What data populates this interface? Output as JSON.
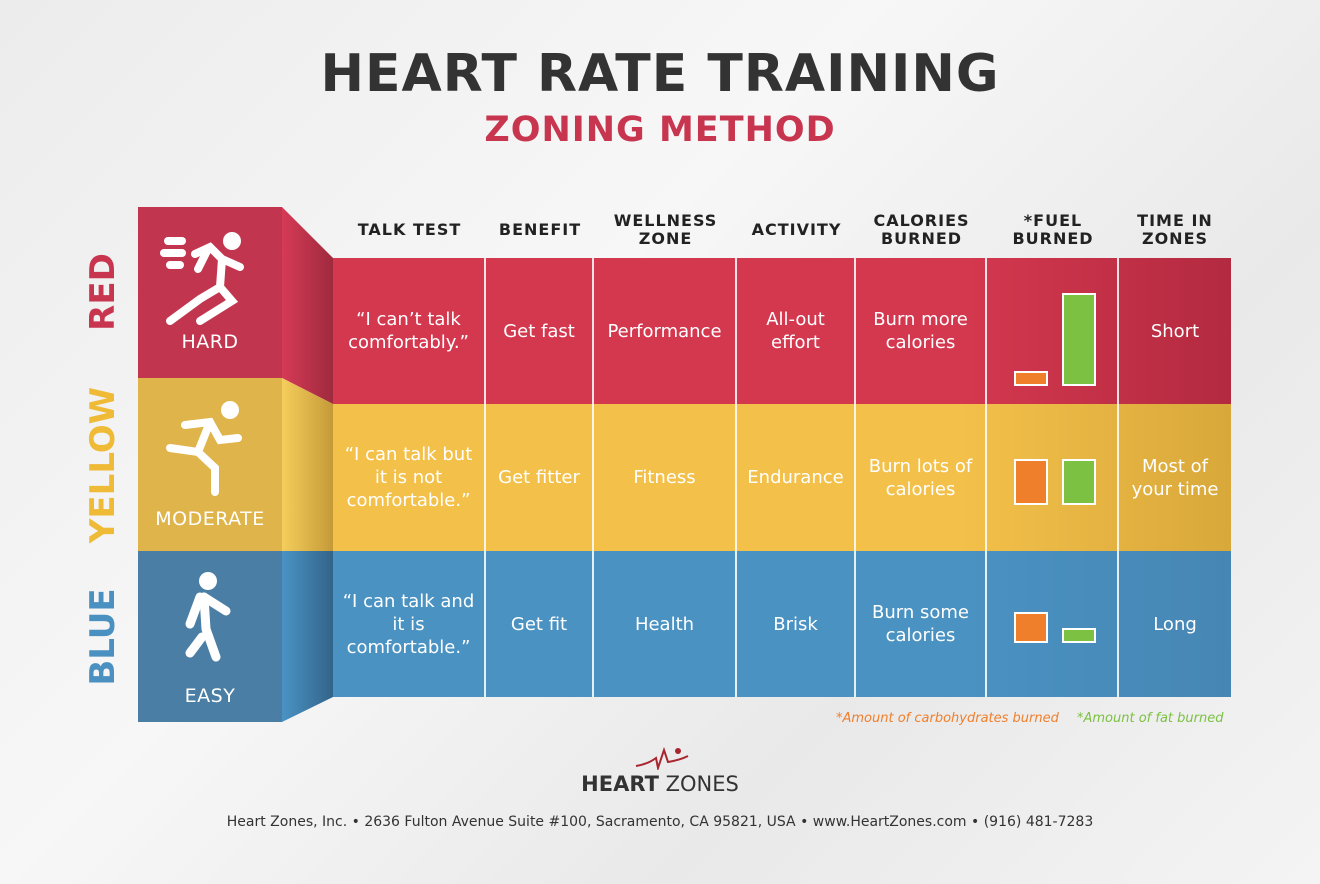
{
  "title": "HEART RATE TRAINING",
  "subtitle": "ZONING METHOD",
  "columns": [
    "TALK TEST",
    "BENEFIT",
    "WELLNESS ZONE",
    "ACTIVITY",
    "CALORIES BURNED",
    "*FUEL BURNED",
    "TIME IN ZONES"
  ],
  "colors": {
    "red": "#d0374f",
    "yellow": "#f2c045",
    "blue": "#4a90c0",
    "carb": "#f07f2c",
    "fat": "#7cc142"
  },
  "zones": [
    {
      "color_name": "RED",
      "intensity": "HARD",
      "icon": "sprinting-person-icon",
      "talk_test": "“I can’t talk comfortably.”",
      "benefit": "Get fast",
      "wellness_zone": "Performance",
      "activity": "All-out effort",
      "calories": "Burn more calories",
      "time": "Short",
      "fuel": {
        "carbohydrates": 0.16,
        "fat": 1.0
      }
    },
    {
      "color_name": "YELLOW",
      "intensity": "MODERATE",
      "icon": "running-person-icon",
      "talk_test": "“I can talk but it is not comfortable.”",
      "benefit": "Get fitter",
      "wellness_zone": "Fitness",
      "activity": "Endurance",
      "calories": "Burn lots of calories",
      "time": "Most of your time",
      "fuel": {
        "carbohydrates": 0.5,
        "fat": 0.5
      }
    },
    {
      "color_name": "BLUE",
      "intensity": "EASY",
      "icon": "walking-person-icon",
      "talk_test": "“I can talk and it is comfortable.”",
      "benefit": "Get fit",
      "wellness_zone": "Health",
      "activity": "Brisk",
      "calories": "Burn some calories",
      "time": "Long",
      "fuel": {
        "carbohydrates": 0.33,
        "fat": 0.16
      }
    }
  ],
  "notes": {
    "carb": "*Amount of carbohydrates burned",
    "fat": "*Amount of fat burned"
  },
  "brand": {
    "bold": "HEART",
    "light": " ZONES"
  },
  "footer": "Heart Zones, Inc.  •  2636 Fulton Avenue Suite #100, Sacramento, CA 95821, USA  •  www.HeartZones.com  •  (916) 481-7283"
}
